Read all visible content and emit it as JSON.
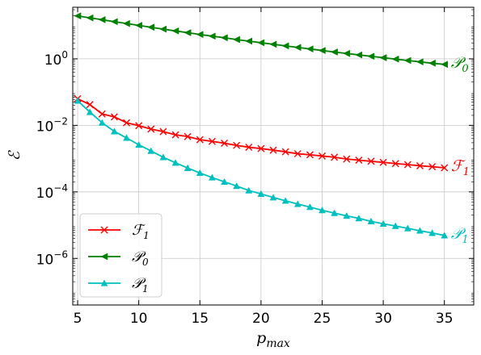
{
  "chart_data": {
    "type": "line",
    "title": "",
    "xlabel": "p",
    "xlabel_sub": "max",
    "ylabel": "ℰ",
    "y_scale": "log",
    "xlim": [
      4.6,
      37.4
    ],
    "ylim_log10": [
      -7.4,
      1.55
    ],
    "x_ticks": [
      5,
      10,
      15,
      20,
      25,
      30,
      35
    ],
    "x_tick_labels": [
      "5",
      "10",
      "15",
      "20",
      "25",
      "30",
      "35"
    ],
    "y_ticks_log10": [
      0,
      -2,
      -4,
      -6
    ],
    "y_tick_labels": [
      {
        "base": "10",
        "exp": "0"
      },
      {
        "base": "10",
        "exp": "−2"
      },
      {
        "base": "10",
        "exp": "−4"
      },
      {
        "base": "10",
        "exp": "−6"
      }
    ],
    "grid": true,
    "legend_position": "lower-left",
    "x": [
      5,
      6,
      7,
      8,
      9,
      10,
      11,
      12,
      13,
      14,
      15,
      16,
      17,
      18,
      19,
      20,
      21,
      22,
      23,
      24,
      25,
      26,
      27,
      28,
      29,
      30,
      31,
      32,
      33,
      34,
      35
    ],
    "series": [
      {
        "name": "ℱ",
        "name_sub": "1",
        "color": "#ff0000",
        "marker": "x",
        "values": [
          0.063,
          0.042,
          0.022,
          0.018,
          0.012,
          0.0098,
          0.0077,
          0.0065,
          0.0052,
          0.0046,
          0.0037,
          0.0033,
          0.0029,
          0.0025,
          0.0022,
          0.002,
          0.0018,
          0.0016,
          0.0014,
          0.0013,
          0.0012,
          0.0011,
          0.00097,
          0.0009,
          0.00083,
          0.00077,
          0.00071,
          0.00066,
          0.00061,
          0.00057,
          0.00053
        ]
      },
      {
        "name": "𝒫",
        "name_sub": "0",
        "color": "#008000",
        "marker": "triangle-left",
        "values": [
          19.5,
          17.0,
          15.0,
          13.1,
          11.5,
          10.1,
          8.9,
          7.8,
          6.9,
          6.1,
          5.4,
          4.8,
          4.3,
          3.8,
          3.4,
          3.05,
          2.73,
          2.45,
          2.2,
          1.98,
          1.78,
          1.6,
          1.45,
          1.31,
          1.19,
          1.08,
          0.98,
          0.89,
          0.81,
          0.74,
          0.68
        ]
      },
      {
        "name": "𝒫",
        "name_sub": "1",
        "color": "#00bfbf",
        "marker": "triangle-up",
        "values": [
          0.055,
          0.025,
          0.012,
          0.0066,
          0.0042,
          0.0026,
          0.0017,
          0.0011,
          0.00075,
          0.00052,
          0.00037,
          0.00027,
          0.0002,
          0.00015,
          0.00011,
          8.7e-05,
          6.8e-05,
          5.4e-05,
          4.3e-05,
          3.5e-05,
          2.8e-05,
          2.3e-05,
          1.9e-05,
          1.6e-05,
          1.3e-05,
          1.1e-05,
          9.4e-06,
          8e-06,
          6.8e-06,
          5.8e-06,
          4.9e-06
        ]
      }
    ]
  }
}
